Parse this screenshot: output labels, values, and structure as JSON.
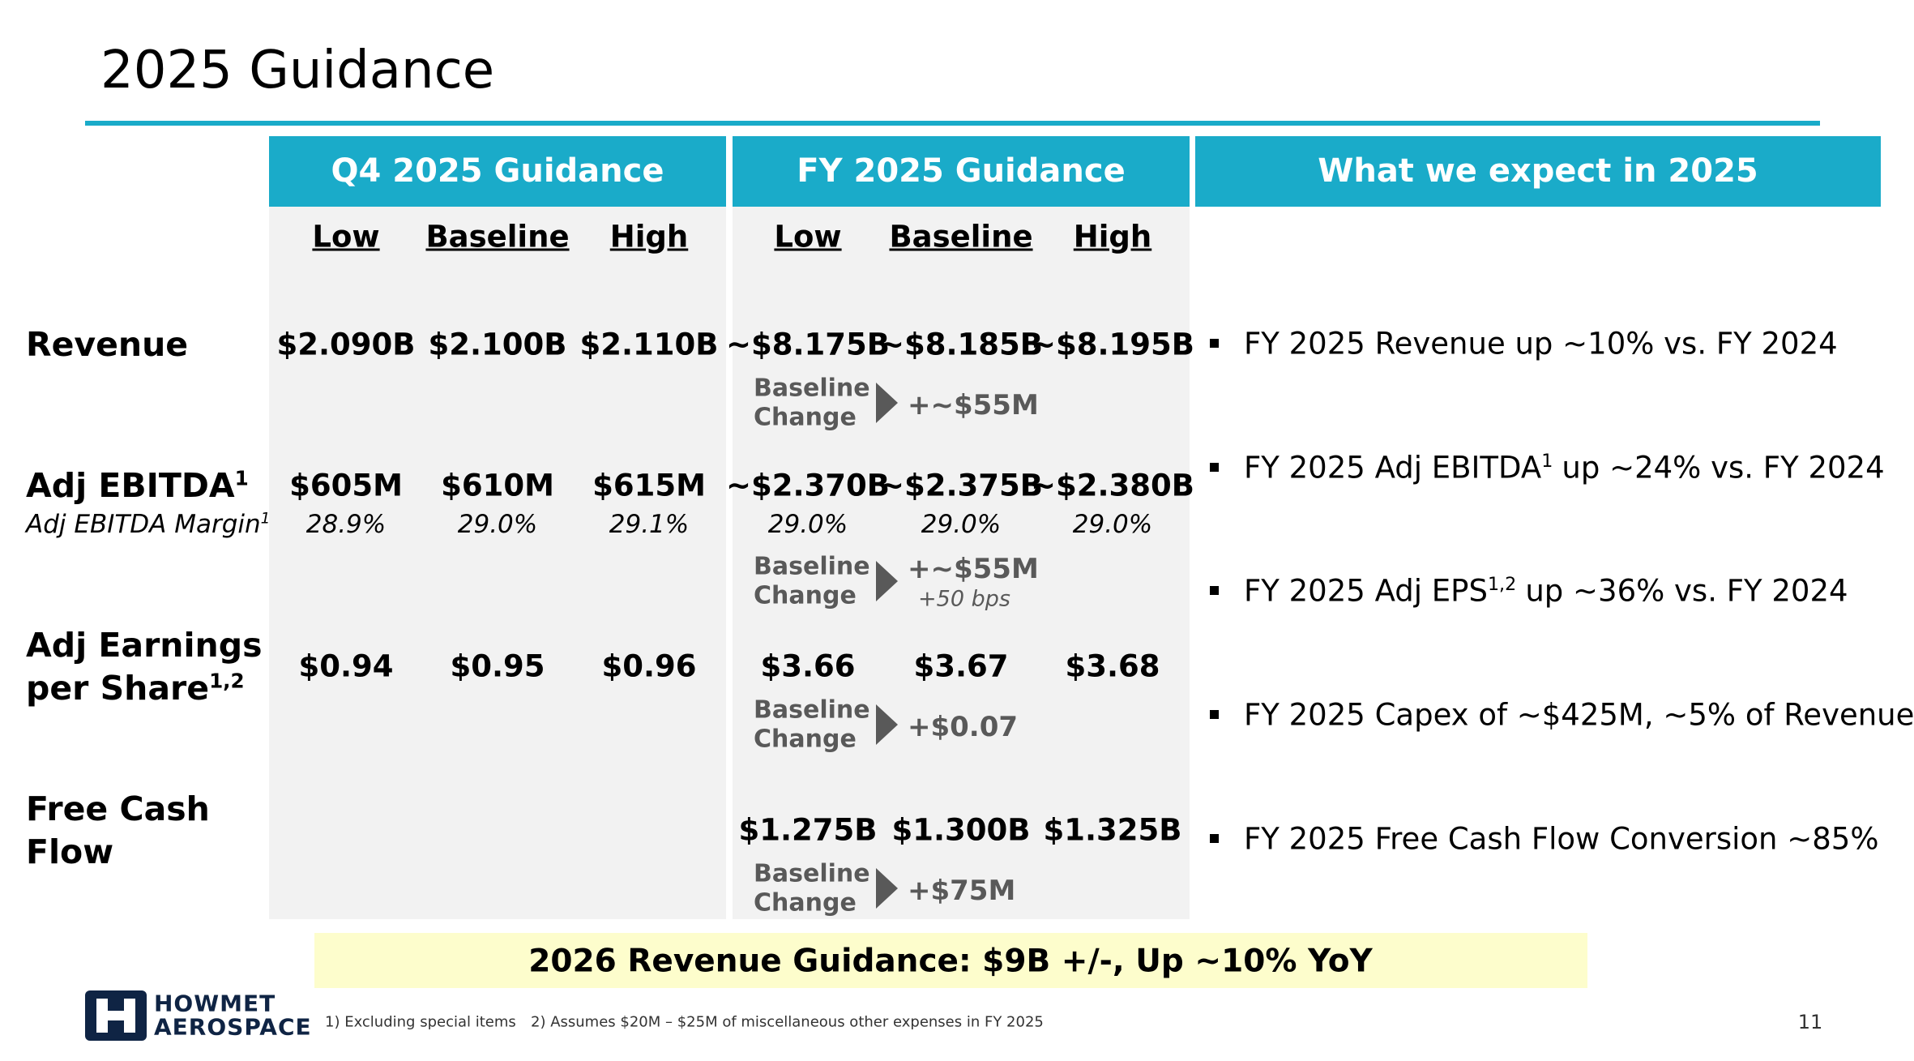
{
  "title": "2025 Guidance",
  "headers": [
    "Q4 2025 Guidance",
    "FY 2025 Guidance",
    "What we expect in 2025"
  ],
  "subheads": [
    [
      "Low",
      "Baseline",
      "High"
    ],
    [
      "Low",
      "Baseline",
      "High"
    ]
  ],
  "rows": [
    {
      "label": [
        "Revenue"
      ],
      "q4": [
        "$2.090B",
        "$2.100B",
        "$2.110B"
      ],
      "fy": [
        "~$8.175B",
        "~$8.185B",
        "~$8.195B"
      ],
      "change": {
        "label": [
          "Baseline",
          "Change"
        ],
        "value": "+~$55M"
      }
    },
    {
      "label": [
        "Adj EBITDA"
      ],
      "sup": "1",
      "sublabel": "Adj EBITDA Margin",
      "sublabel_sup": "1",
      "q4": [
        "$605M",
        "$610M",
        "$615M"
      ],
      "q4_sub": [
        "28.9%",
        "29.0%",
        "29.1%"
      ],
      "fy": [
        "~$2.370B",
        "~$2.375B",
        "~$2.380B"
      ],
      "fy_sub": [
        "29.0%",
        "29.0%",
        "29.0%"
      ],
      "change": {
        "label": [
          "Baseline",
          "Change"
        ],
        "value": "+~$55M",
        "note": "+50 bps"
      }
    },
    {
      "label": [
        "Adj Earnings",
        "per Share"
      ],
      "sup": "1,2",
      "q4": [
        "$0.94",
        "$0.95",
        "$0.96"
      ],
      "fy": [
        "$3.66",
        "$3.67",
        "$3.68"
      ],
      "change": {
        "label": [
          "Baseline",
          "Change"
        ],
        "value": "+$0.07"
      }
    },
    {
      "label": [
        "Free Cash",
        "Flow"
      ],
      "q4": [],
      "fy": [
        "$1.275B",
        "$1.300B",
        "$1.325B"
      ],
      "change": {
        "label": [
          "Baseline",
          "Change"
        ],
        "value": "+$75M"
      }
    }
  ],
  "bullets": [
    {
      "text": "FY 2025 Revenue up ~10% vs. FY 2024"
    },
    {
      "text": "FY 2025 Adj EBITDA",
      "sup": "1",
      "after": "up ~24% vs. FY 2024"
    },
    {
      "text": "FY 2025 Adj EPS",
      "sup": "1,2",
      "after": "up ~36% vs. FY 2024"
    },
    {
      "text": "FY 2025 Capex of ~$425M, ~5% of Revenue"
    },
    {
      "text": "FY 2025 Free Cash Flow Conversion ~85%"
    }
  ],
  "banner": "2026 Revenue Guidance: $9B +/-, Up ~10% YoY",
  "logo": [
    "HOWMET",
    "AEROSPACE"
  ],
  "footnotes": [
    "1) Excluding special items",
    "2) Assumes $20M – $25M of miscellaneous other expenses in FY 2025"
  ],
  "page_number": "11"
}
